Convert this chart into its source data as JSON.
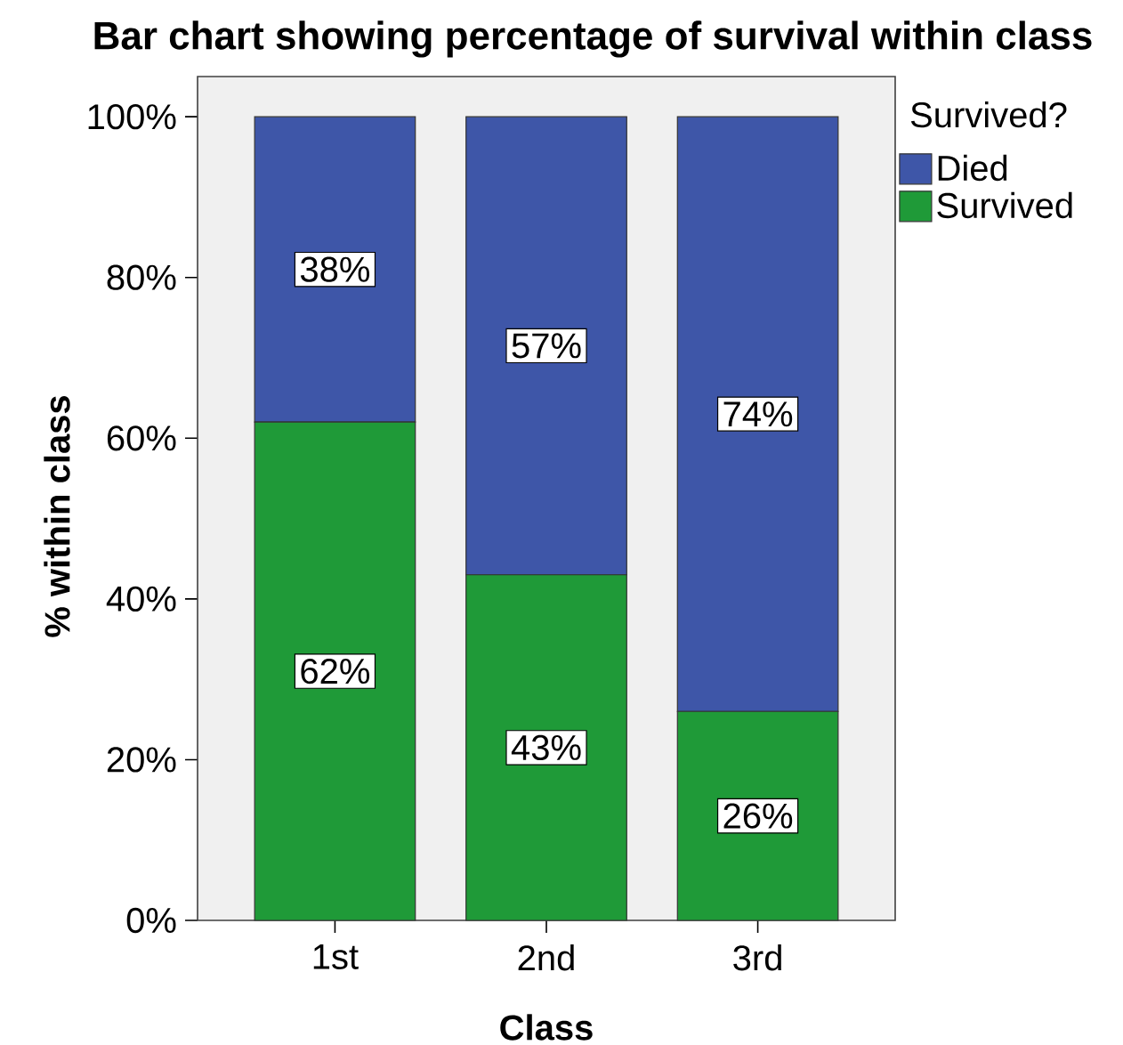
{
  "chart_data": {
    "type": "bar",
    "title": "Bar chart showing percentage of survival within class",
    "xlabel": "Class",
    "ylabel": "% within class",
    "legend_title": "Survived?",
    "categories": [
      "1st",
      "2nd",
      "3rd"
    ],
    "stacked": true,
    "series": [
      {
        "name": "Survived",
        "color": "#1f9a38",
        "values": [
          62,
          43,
          26
        ],
        "value_labels": [
          "62%",
          "43%",
          "26%"
        ]
      },
      {
        "name": "Died",
        "color": "#3e56a8",
        "values": [
          38,
          57,
          74
        ],
        "value_labels": [
          "38%",
          "57%",
          "74%"
        ]
      }
    ],
    "ylim": [
      0,
      105
    ],
    "yticks": [
      {
        "value": 0,
        "label": "0%"
      },
      {
        "value": 20,
        "label": "20%"
      },
      {
        "value": 40,
        "label": "40%"
      },
      {
        "value": 60,
        "label": "60%"
      },
      {
        "value": 80,
        "label": "80%"
      },
      {
        "value": 100,
        "label": "100%"
      }
    ],
    "legend": "top right"
  }
}
